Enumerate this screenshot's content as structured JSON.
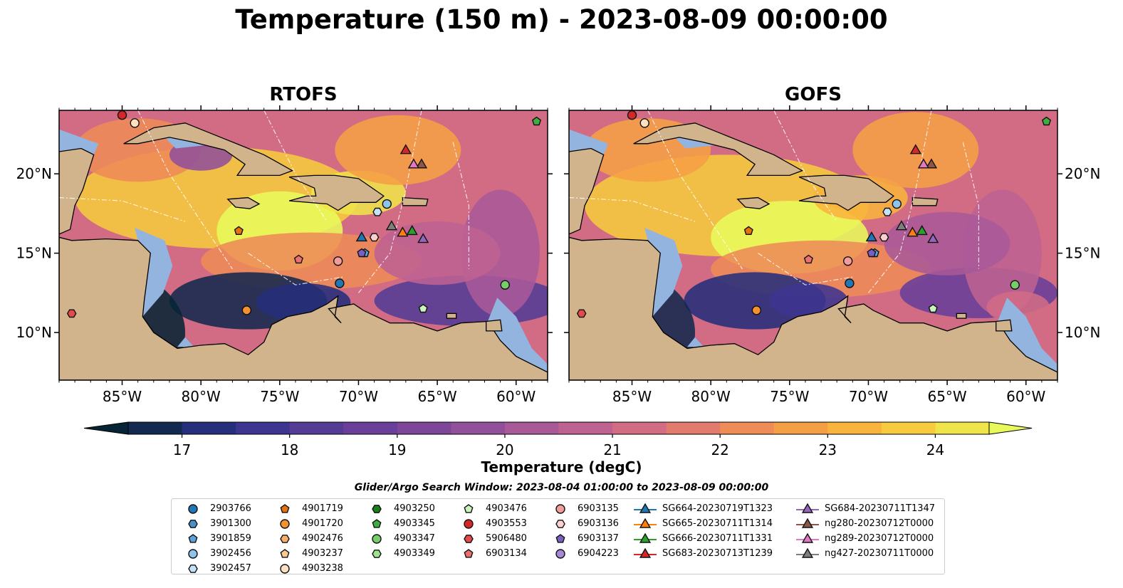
{
  "title": "Temperature (150 m) - 2023-08-09 00:00:00",
  "colors": {
    "land": "#d2b48c",
    "shelf": "#94b4e0",
    "ocean_deep": "#062436",
    "colormap": [
      "#062436",
      "#13294f",
      "#252f7b",
      "#3d358f",
      "#543c95",
      "#693f99",
      "#7e4699",
      "#92509a",
      "#a85998",
      "#be6292",
      "#d26c85",
      "#e37a6e",
      "#ee8b56",
      "#f59f45",
      "#f8b43c",
      "#f6cb3d",
      "#efe449",
      "#e8fa5b"
    ]
  },
  "chart_data": {
    "type": "map",
    "panels": [
      {
        "title": "RTOFS"
      },
      {
        "title": "GOFS"
      }
    ],
    "lon_range": [
      -89,
      -58
    ],
    "lat_range": [
      7,
      24
    ],
    "lon_ticks": [
      "85°W",
      "80°W",
      "75°W",
      "70°W",
      "65°W",
      "60°W"
    ],
    "lon_tick_values": [
      -85,
      -80,
      -75,
      -70,
      -65,
      -60
    ],
    "lat_ticks": [
      "10°N",
      "15°N",
      "20°N"
    ],
    "lat_tick_values": [
      10,
      15,
      20
    ],
    "colorbar": {
      "label": "Temperature (degC)",
      "min": 16.5,
      "max": 24.5,
      "step": 0.5,
      "ticks": [
        "17",
        "18",
        "19",
        "20",
        "21",
        "22",
        "23",
        "24"
      ],
      "tick_values": [
        17,
        18,
        19,
        20,
        21,
        22,
        23,
        24
      ],
      "extend": "both"
    },
    "search_window": "Glider/Argo Search Window: 2023-08-04 01:00:00 to 2023-08-09 00:00:00",
    "floats": [
      {
        "id": "2903766",
        "marker": "circle",
        "color": "#1f77b4",
        "lon": -71.2,
        "lat": 13.1
      },
      {
        "id": "3901300",
        "marker": "hexagon",
        "color": "#4a8ec6",
        "lon": -66.5,
        "lat": 24.5
      },
      {
        "id": "3901859",
        "marker": "pentagon",
        "color": "#5fa2da",
        "lon": -69.6,
        "lat": 15.0
      },
      {
        "id": "3902456",
        "marker": "circle",
        "color": "#8ec4ea",
        "lon": -68.2,
        "lat": 18.1
      },
      {
        "id": "3902457",
        "marker": "hexagon",
        "color": "#c4e2f6",
        "lon": -68.8,
        "lat": 17.6
      },
      {
        "id": "4901719",
        "marker": "pentagon",
        "color": "#e8710a",
        "lon": -77.6,
        "lat": 16.4
      },
      {
        "id": "4901720",
        "marker": "circle",
        "color": "#f5922f",
        "lon": -77.1,
        "lat": 11.4
      },
      {
        "id": "4902476",
        "marker": "hexagon",
        "color": "#f7b06b",
        "lon": -75.5,
        "lat": 24.5
      },
      {
        "id": "4903237",
        "marker": "pentagon",
        "color": "#f9c996",
        "lon": -74.8,
        "lat": 24.5
      },
      {
        "id": "4903238",
        "marker": "circle",
        "color": "#fde1c0",
        "lon": -84.2,
        "lat": 23.2
      },
      {
        "id": "4903250",
        "marker": "hexagon",
        "color": "#1a7f1a",
        "lon": -63.0,
        "lat": 24.5
      },
      {
        "id": "4903345",
        "marker": "pentagon",
        "color": "#3fae3f",
        "lon": -58.7,
        "lat": 23.3
      },
      {
        "id": "4903347",
        "marker": "circle",
        "color": "#7acc6a",
        "lon": -60.7,
        "lat": 13.0
      },
      {
        "id": "4903349",
        "marker": "hexagon",
        "color": "#9ee38e",
        "lon": -70.0,
        "lat": 24.5
      },
      {
        "id": "4903476",
        "marker": "pentagon",
        "color": "#c9f5bd",
        "lon": -65.9,
        "lat": 11.5
      },
      {
        "id": "4903553",
        "marker": "circle",
        "color": "#d62728",
        "lon": -85.0,
        "lat": 23.7
      },
      {
        "id": "5906480",
        "marker": "hexagon",
        "color": "#e34a4a",
        "lon": -88.2,
        "lat": 11.2
      },
      {
        "id": "6903134",
        "marker": "pentagon",
        "color": "#ed7070",
        "lon": -73.8,
        "lat": 14.6
      },
      {
        "id": "6903135",
        "marker": "circle",
        "color": "#f39c9c",
        "lon": -71.3,
        "lat": 14.5
      },
      {
        "id": "6903136",
        "marker": "hexagon",
        "color": "#fcd0d0",
        "lon": -69.0,
        "lat": 16.0
      },
      {
        "id": "6903137",
        "marker": "pentagon",
        "color": "#7b5ec2",
        "lon": -69.8,
        "lat": 15.0
      },
      {
        "id": "6904223",
        "marker": "circle",
        "color": "#a589d8",
        "lon": -72.0,
        "lat": 24.5
      }
    ],
    "gliders": [
      {
        "id": "SG664-20230719T1323",
        "color": "#1f77b4",
        "lon": -69.8,
        "lat": 16.0
      },
      {
        "id": "SG665-20230711T1314",
        "color": "#ff7f0e",
        "lon": -67.2,
        "lat": 16.3
      },
      {
        "id": "SG666-20230711T1331",
        "color": "#2ca02c",
        "lon": -66.6,
        "lat": 16.4
      },
      {
        "id": "SG683-20230713T1239",
        "color": "#d62728",
        "lon": -67.0,
        "lat": 21.5
      },
      {
        "id": "SG684-20230711T1347",
        "color": "#9467bd",
        "lon": -65.9,
        "lat": 15.9
      },
      {
        "id": "ng280-20230712T0000",
        "color": "#8c564b",
        "lon": -66.0,
        "lat": 20.6
      },
      {
        "id": "ng289-20230712T0000",
        "color": "#e377c2",
        "lon": -66.5,
        "lat": 20.6
      },
      {
        "id": "ng427-20230711T0000",
        "color": "#7f7f7f",
        "lon": -67.9,
        "lat": 16.7
      }
    ]
  }
}
